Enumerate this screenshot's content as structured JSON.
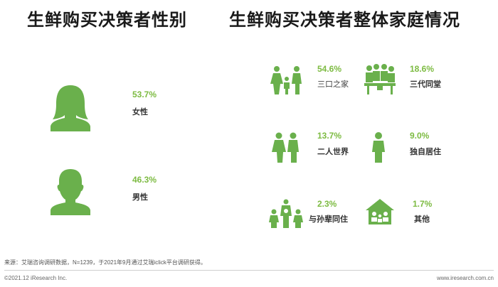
{
  "colors": {
    "accent": "#7dbb42",
    "icon": "#6ab04c"
  },
  "left_panel": {
    "title": "生鲜购买决策者性别",
    "items": [
      {
        "icon": "female-person-icon",
        "percent": "53.7%",
        "label": "女性"
      },
      {
        "icon": "male-person-icon",
        "percent": "46.3%",
        "label": "男性"
      }
    ]
  },
  "right_panel": {
    "title": "生鲜购买决策者整体家庭情况",
    "items": [
      {
        "icon": "family-of-three-icon",
        "percent": "54.6%",
        "label": "三口之家"
      },
      {
        "icon": "three-generations-icon",
        "percent": "18.6%",
        "label": "三代同堂"
      },
      {
        "icon": "couple-icon",
        "percent": "13.7%",
        "label": "二人世界"
      },
      {
        "icon": "single-person-icon",
        "percent": "9.0%",
        "label": "独自居住"
      },
      {
        "icon": "family-with-siblings-icon",
        "percent": "2.3%",
        "label": "与孙辈同住"
      },
      {
        "icon": "family-house-icon",
        "percent": "1.7%",
        "label": "其他"
      }
    ]
  },
  "chart_data": [
    {
      "type": "table",
      "title": "生鲜购买决策者性别",
      "categories": [
        "女性",
        "男性"
      ],
      "values": [
        53.7,
        46.3
      ],
      "unit": "%"
    },
    {
      "type": "table",
      "title": "生鲜购买决策者整体家庭情况",
      "categories": [
        "三口之家",
        "三代同堂",
        "二人世界",
        "独自居住",
        "与孙辈同住",
        "其他"
      ],
      "values": [
        54.6,
        18.6,
        13.7,
        9.0,
        2.3,
        1.7
      ],
      "unit": "%"
    }
  ],
  "footer": {
    "source": "来源：艾瑞咨询调研数据，N=1239，于2021年9月通过艾瑞iclick平台调研获得。",
    "copyright": "©2021.12 iResearch Inc.",
    "website": "www.iresearch.com.cn"
  }
}
